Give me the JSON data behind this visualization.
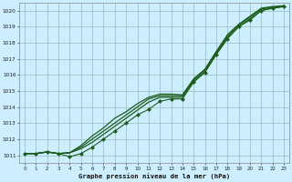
{
  "title": "Graphe pression niveau de la mer (hPa)",
  "bg_color": "#cceeff",
  "grid_color": "#99bbbb",
  "line_color": "#1a5c1a",
  "xlim": [
    -0.5,
    23.5
  ],
  "ylim": [
    1010.5,
    1020.5
  ],
  "yticks": [
    1011,
    1012,
    1013,
    1014,
    1015,
    1016,
    1017,
    1018,
    1019,
    1020
  ],
  "xticks": [
    0,
    1,
    2,
    3,
    4,
    5,
    6,
    7,
    8,
    9,
    10,
    11,
    12,
    13,
    14,
    15,
    16,
    17,
    18,
    19,
    20,
    21,
    22,
    23
  ],
  "hours": [
    0,
    1,
    2,
    3,
    4,
    5,
    6,
    7,
    8,
    9,
    10,
    11,
    12,
    13,
    14,
    15,
    16,
    17,
    18,
    19,
    20,
    21,
    22,
    23
  ],
  "smooth1": [
    1011.1,
    1011.1,
    1011.2,
    1011.1,
    1011.15,
    1011.4,
    1011.8,
    1012.3,
    1012.8,
    1013.3,
    1013.8,
    1014.3,
    1014.6,
    1014.6,
    1014.6,
    1015.6,
    1016.2,
    1017.3,
    1018.3,
    1019.0,
    1019.5,
    1020.0,
    1020.15,
    1020.25
  ],
  "smooth2": [
    1011.1,
    1011.1,
    1011.2,
    1011.1,
    1011.15,
    1011.5,
    1012.0,
    1012.5,
    1013.0,
    1013.5,
    1014.0,
    1014.5,
    1014.7,
    1014.7,
    1014.7,
    1015.7,
    1016.3,
    1017.4,
    1018.4,
    1019.1,
    1019.6,
    1020.1,
    1020.2,
    1020.3
  ],
  "smooth3": [
    1011.1,
    1011.1,
    1011.2,
    1011.1,
    1011.15,
    1011.6,
    1012.2,
    1012.7,
    1013.3,
    1013.7,
    1014.2,
    1014.6,
    1014.8,
    1014.8,
    1014.75,
    1015.75,
    1016.35,
    1017.45,
    1018.5,
    1019.15,
    1019.65,
    1020.15,
    1020.25,
    1020.3
  ],
  "marker_series": [
    1011.1,
    1011.1,
    1011.2,
    1011.1,
    1010.9,
    1011.1,
    1011.5,
    1012.0,
    1012.5,
    1013.0,
    1013.5,
    1013.85,
    1014.35,
    1014.5,
    1014.5,
    1015.55,
    1016.15,
    1017.25,
    1018.25,
    1019.0,
    1019.4,
    1020.0,
    1020.15,
    1020.25
  ]
}
